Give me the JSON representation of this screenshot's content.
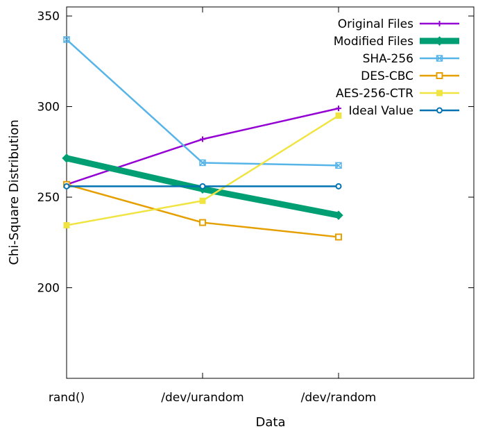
{
  "chart_data": {
    "type": "line",
    "title": "",
    "xlabel": "Data",
    "ylabel": "Chi-Square Distribution",
    "categories": [
      "rand()",
      "/dev/urandom",
      "/dev/random"
    ],
    "ylim": [
      150,
      355
    ],
    "y_ticks": [
      200,
      250,
      300,
      350
    ],
    "grid": false,
    "legend_position": "top-right",
    "series": [
      {
        "name": "Original Files",
        "color": "#9400d3",
        "marker": "plus",
        "emphasis": false,
        "values": [
          257,
          282,
          299
        ]
      },
      {
        "name": "Modified Files",
        "color": "#009e73",
        "marker": "diamond",
        "emphasis": true,
        "values": [
          271.5,
          254.5,
          240
        ]
      },
      {
        "name": "SHA-256",
        "color": "#56b4e9",
        "marker": "x-square",
        "emphasis": false,
        "values": [
          337,
          269,
          267.5
        ]
      },
      {
        "name": "DES-CBC",
        "color": "#e69f00",
        "marker": "open-square",
        "emphasis": false,
        "values": [
          257,
          236,
          228
        ]
      },
      {
        "name": "AES-256-CTR",
        "color": "#f0e442",
        "marker": "filled-square",
        "emphasis": false,
        "values": [
          234.5,
          248,
          295
        ]
      },
      {
        "name": "Ideal Value",
        "color": "#0072b2",
        "marker": "open-circle",
        "emphasis": false,
        "values": [
          256,
          256,
          256
        ]
      }
    ]
  }
}
